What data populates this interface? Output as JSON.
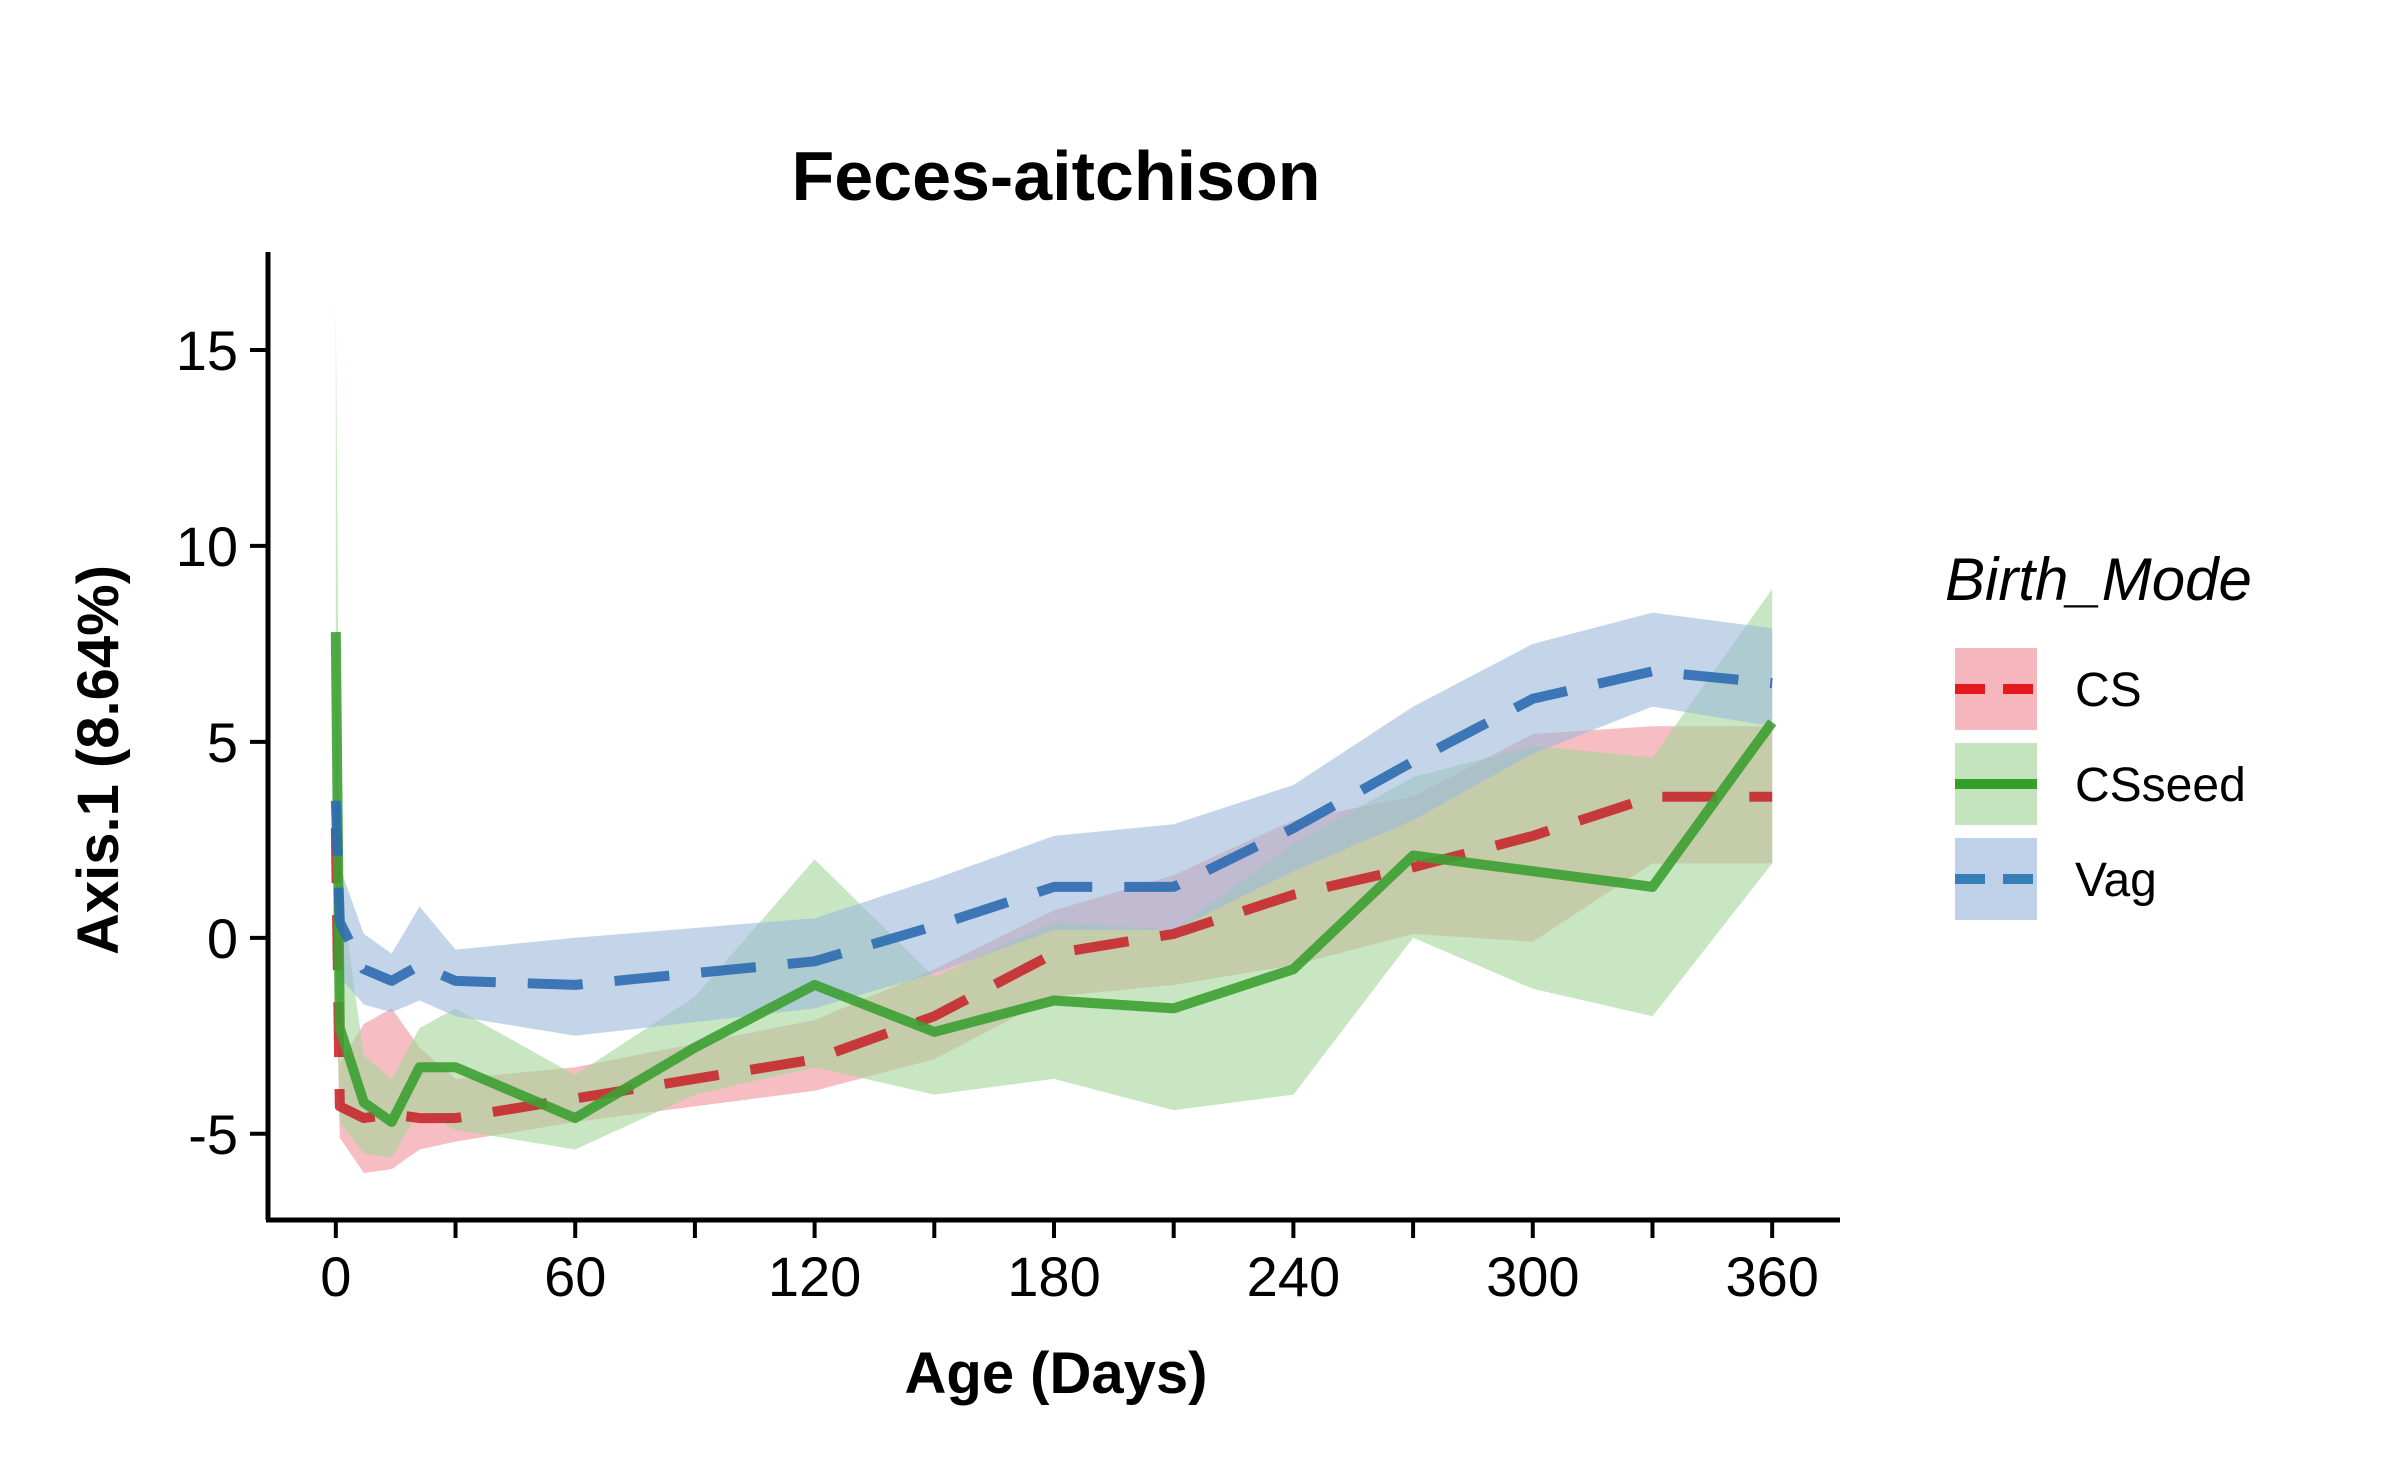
{
  "chart_data": {
    "type": "line",
    "title": "Feces-aitchison",
    "xlabel": "Age (Days)",
    "ylabel": "Axis.1 (8.64%)",
    "xlim": [
      -17,
      377
    ],
    "ylim": [
      -7.2,
      17.5
    ],
    "x_ticks": [
      0,
      60,
      120,
      180,
      240,
      300,
      360
    ],
    "x_minor_ticks": [
      30,
      90,
      150,
      210,
      270,
      330
    ],
    "y_ticks": [
      -5,
      0,
      5,
      10,
      15
    ],
    "grid": false,
    "legend": {
      "title": "Birth_Mode",
      "position": "right"
    },
    "series": [
      {
        "name": "CS",
        "color": "#E41A1C",
        "line_color": "#C8282E",
        "band_color": "#F0919A",
        "dash": "dashed",
        "x": [
          0,
          1,
          7,
          14,
          21,
          30,
          60,
          120,
          150,
          180,
          210,
          240,
          270,
          300,
          330,
          360
        ],
        "y": [
          2.8,
          -4.3,
          -4.6,
          -4.5,
          -4.6,
          -4.6,
          -4.1,
          -3.1,
          -2.0,
          -0.4,
          0.1,
          1.1,
          1.8,
          2.6,
          3.6,
          3.6
        ],
        "lower": [
          -0.3,
          -5.1,
          -6.0,
          -5.9,
          -5.4,
          -5.2,
          -4.7,
          -3.9,
          -3.1,
          -1.5,
          -1.2,
          -0.7,
          0.1,
          -0.1,
          1.9,
          1.9
        ],
        "upper": [
          5.8,
          -3.2,
          -2.2,
          -1.8,
          -2.8,
          -3.6,
          -3.3,
          -2.1,
          -0.8,
          0.7,
          1.6,
          3.0,
          3.6,
          5.2,
          5.4,
          5.4
        ]
      },
      {
        "name": "CSseed",
        "color": "#33A02C",
        "line_color": "#3DA032",
        "band_color": "#A3D69A",
        "dash": "solid",
        "x": [
          0,
          1,
          7,
          14,
          21,
          30,
          60,
          90,
          120,
          150,
          180,
          210,
          240,
          270,
          300,
          330,
          360
        ],
        "y": [
          7.8,
          -2.3,
          -4.2,
          -4.7,
          -3.3,
          -3.3,
          -4.6,
          -2.8,
          -1.2,
          -2.4,
          -1.6,
          -1.8,
          -0.8,
          2.1,
          1.7,
          1.3,
          5.5
        ],
        "lower": [
          0.0,
          -4.7,
          -5.5,
          -5.6,
          -4.4,
          -4.9,
          -5.4,
          -4.0,
          -3.3,
          -4.0,
          -3.6,
          -4.4,
          -4.0,
          0.0,
          -1.3,
          -2.0,
          1.9
        ],
        "upper": [
          16.2,
          1.4,
          -3.0,
          -3.6,
          -2.3,
          -1.8,
          -3.5,
          -1.5,
          2.0,
          -1.0,
          0.4,
          0.2,
          2.4,
          4.1,
          4.9,
          4.6,
          8.9
        ]
      },
      {
        "name": "Vag",
        "color": "#377EB8",
        "line_color": "#2E6BB0",
        "band_color": "#9DB9DB",
        "dash": "dashed",
        "x": [
          0,
          1,
          7,
          14,
          21,
          30,
          60,
          120,
          150,
          180,
          210,
          240,
          270,
          300,
          330,
          360
        ],
        "y": [
          3.5,
          0.4,
          -0.8,
          -1.1,
          -0.7,
          -1.1,
          -1.2,
          -0.6,
          0.3,
          1.3,
          1.3,
          2.8,
          4.5,
          6.1,
          6.8,
          6.5
        ],
        "lower": [
          1.0,
          -1.0,
          -1.7,
          -1.9,
          -1.6,
          -2.0,
          -2.5,
          -1.8,
          -0.9,
          0.2,
          0.2,
          1.7,
          3.0,
          4.7,
          5.9,
          5.4
        ],
        "upper": [
          6.0,
          1.8,
          0.1,
          -0.4,
          0.8,
          -0.3,
          0.0,
          0.5,
          1.5,
          2.6,
          2.9,
          3.9,
          5.9,
          7.5,
          8.3,
          7.9
        ]
      }
    ]
  }
}
